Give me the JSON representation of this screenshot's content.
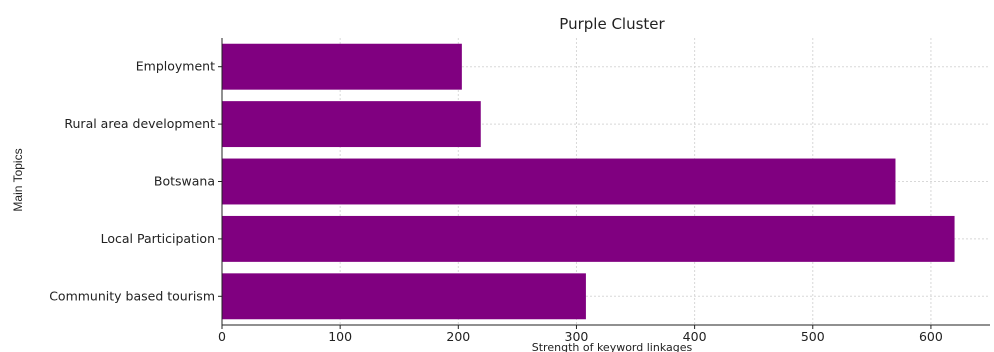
{
  "chart_data": {
    "type": "bar",
    "orientation": "horizontal",
    "title": "Purple Cluster",
    "xlabel": "Strength of keyword linkages",
    "ylabel": "Main Topics",
    "categories": [
      "Community based tourism",
      "Local Participation",
      "Botswana",
      "Rural area development",
      "Employment"
    ],
    "values": [
      308,
      620,
      570,
      219,
      203
    ],
    "xlim": [
      0,
      650
    ],
    "xticks": [
      0,
      100,
      200,
      300,
      400,
      500,
      600
    ],
    "grid": true,
    "bar_color": "#800080"
  }
}
